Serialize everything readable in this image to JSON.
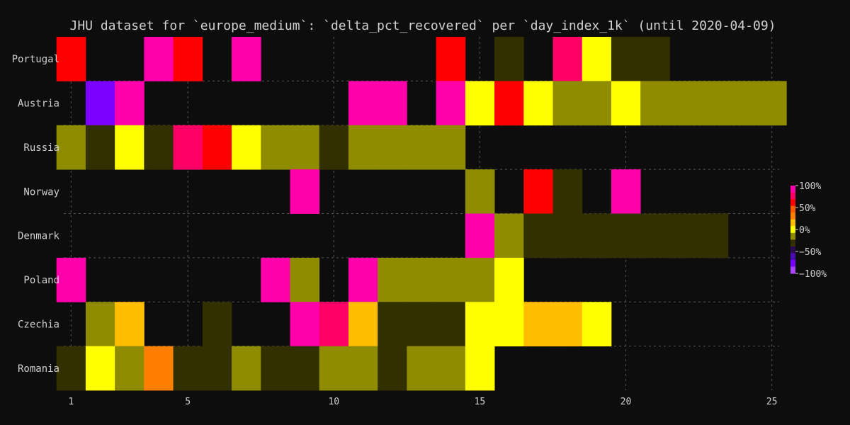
{
  "chart_data": {
    "type": "heatmap",
    "title": "JHU dataset for `europe_medium`: `delta_pct_recovered` per `day_index_1k` (until 2020-04-09)",
    "xlabel": "",
    "ylabel": "",
    "xlim": [
      0.75,
      25.25
    ],
    "x_ticks": [
      1,
      5,
      10,
      15,
      20,
      25
    ],
    "grid": true,
    "rows": [
      "Portugal",
      "Austria",
      "Russia",
      "Norway",
      "Denmark",
      "Poland",
      "Czechia",
      "Romania"
    ],
    "cells": {
      "Portugal": [
        [
          1,
          60
        ],
        [
          4,
          100
        ],
        [
          5,
          70
        ],
        [
          7,
          100
        ],
        [
          14,
          70
        ],
        [
          16,
          5
        ],
        [
          18,
          90
        ],
        [
          19,
          40
        ],
        [
          20,
          5
        ],
        [
          21,
          5
        ]
      ],
      "Austria": [
        [
          2,
          -100
        ],
        [
          3,
          100
        ],
        [
          11,
          100
        ],
        [
          12,
          100
        ],
        [
          14,
          100
        ],
        [
          15,
          40
        ],
        [
          16,
          60
        ],
        [
          17,
          40
        ],
        [
          18,
          20
        ],
        [
          19,
          20
        ],
        [
          20,
          40
        ],
        [
          21,
          20
        ],
        [
          22,
          20
        ],
        [
          23,
          20
        ],
        [
          24,
          20
        ],
        [
          25,
          20
        ]
      ],
      "Russia": [
        [
          1,
          20
        ],
        [
          2,
          5
        ],
        [
          3,
          40
        ],
        [
          4,
          5
        ],
        [
          5,
          90
        ],
        [
          6,
          70
        ],
        [
          7,
          40
        ],
        [
          8,
          20
        ],
        [
          9,
          20
        ],
        [
          10,
          5
        ],
        [
          11,
          20
        ],
        [
          12,
          20
        ],
        [
          13,
          20
        ],
        [
          14,
          20
        ]
      ],
      "Norway": [
        [
          9,
          100
        ],
        [
          15,
          20
        ],
        [
          17,
          60
        ],
        [
          18,
          5
        ],
        [
          20,
          100
        ]
      ],
      "Denmark": [
        [
          15,
          100
        ],
        [
          16,
          20
        ],
        [
          17,
          5
        ],
        [
          18,
          5
        ],
        [
          19,
          5
        ],
        [
          20,
          5
        ],
        [
          21,
          5
        ],
        [
          22,
          5
        ],
        [
          23,
          5
        ]
      ],
      "Poland": [
        [
          1,
          100
        ],
        [
          8,
          100
        ],
        [
          9,
          20
        ],
        [
          11,
          100
        ],
        [
          12,
          20
        ],
        [
          13,
          20
        ],
        [
          14,
          20
        ],
        [
          15,
          20
        ],
        [
          16,
          40
        ]
      ],
      "Czechia": [
        [
          2,
          20
        ],
        [
          3,
          50
        ],
        [
          6,
          5
        ],
        [
          9,
          100
        ],
        [
          10,
          90
        ],
        [
          11,
          50
        ],
        [
          12,
          5
        ],
        [
          13,
          5
        ],
        [
          14,
          5
        ],
        [
          15,
          40
        ],
        [
          16,
          40
        ],
        [
          17,
          50
        ],
        [
          18,
          50
        ],
        [
          19,
          40
        ]
      ],
      "Romania": [
        [
          1,
          5
        ],
        [
          2,
          40
        ],
        [
          3,
          20
        ],
        [
          4,
          55
        ],
        [
          5,
          5
        ],
        [
          6,
          5
        ],
        [
          7,
          20
        ],
        [
          8,
          5
        ],
        [
          9,
          5
        ],
        [
          10,
          20
        ],
        [
          11,
          20
        ],
        [
          12,
          5
        ],
        [
          13,
          20
        ],
        [
          14,
          20
        ],
        [
          15,
          40
        ]
      ]
    },
    "colorbar": {
      "range": [
        -100,
        100
      ],
      "ticks": [
        100,
        50,
        0,
        -50,
        -100
      ],
      "tick_labels": [
        "100%",
        "50%",
        "0%",
        "−50%",
        "−100%"
      ],
      "colors": [
        "#ff00aa",
        "#ff0066",
        "#ff0000",
        "#ff5a00",
        "#ff8000",
        "#ffbf00",
        "#ffff00",
        "#8f8c00",
        "#333000",
        "#2a0a50",
        "#4a0cb0",
        "#7a00ff",
        "#aa44ff"
      ]
    }
  }
}
